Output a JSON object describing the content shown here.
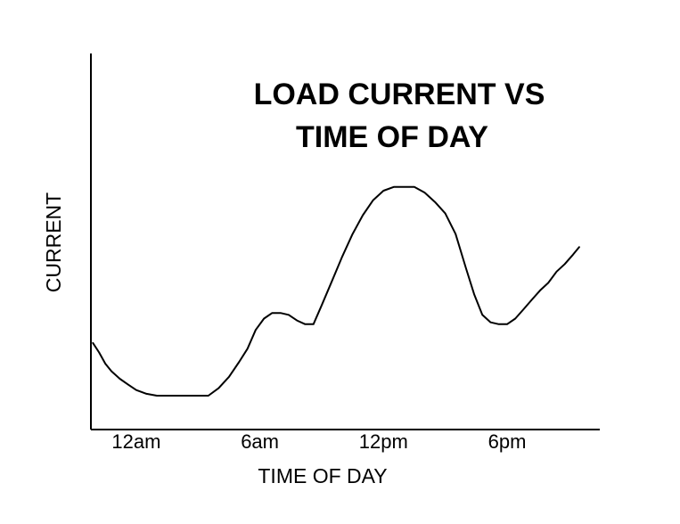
{
  "chart_data": {
    "type": "line",
    "title_lines": [
      "LOAD CURRENT VS",
      "TIME OF DAY"
    ],
    "xlabel": "TIME OF DAY",
    "ylabel": "CURRENT",
    "x_ticks": [
      {
        "label": "12am",
        "x": 0
      },
      {
        "label": "6am",
        "x": 6
      },
      {
        "label": "12pm",
        "x": 12
      },
      {
        "label": "6pm",
        "x": 18
      }
    ],
    "xlim": [
      -2.2,
      22.5
    ],
    "ylim": [
      0,
      10
    ],
    "grid": false,
    "legend": "none",
    "series": [
      {
        "color": "#000000",
        "x": [
          -2.1,
          -1.8,
          -1.5,
          -1.2,
          -0.8,
          -0.4,
          0.0,
          0.5,
          1.0,
          1.5,
          2.0,
          2.5,
          3.0,
          3.5,
          4.0,
          4.5,
          5.0,
          5.4,
          5.8,
          6.2,
          6.6,
          7.0,
          7.4,
          7.8,
          8.2,
          8.6,
          9.0,
          9.5,
          10.0,
          10.5,
          11.0,
          11.5,
          12.0,
          12.5,
          13.0,
          13.5,
          14.0,
          14.5,
          15.0,
          15.5,
          16.0,
          16.4,
          16.8,
          17.2,
          17.6,
          18.0,
          18.4,
          18.8,
          19.2,
          19.6,
          20.0,
          20.4,
          20.8,
          21.2,
          21.5
        ],
        "y": [
          2.3,
          2.05,
          1.75,
          1.55,
          1.35,
          1.2,
          1.05,
          0.95,
          0.9,
          0.9,
          0.9,
          0.9,
          0.9,
          0.9,
          1.1,
          1.4,
          1.8,
          2.15,
          2.65,
          2.95,
          3.1,
          3.1,
          3.05,
          2.9,
          2.8,
          2.8,
          3.3,
          3.95,
          4.6,
          5.2,
          5.7,
          6.1,
          6.35,
          6.45,
          6.45,
          6.45,
          6.3,
          6.05,
          5.75,
          5.2,
          4.3,
          3.6,
          3.05,
          2.85,
          2.8,
          2.8,
          2.95,
          3.2,
          3.45,
          3.7,
          3.9,
          4.2,
          4.4,
          4.65,
          4.85
        ]
      }
    ]
  }
}
